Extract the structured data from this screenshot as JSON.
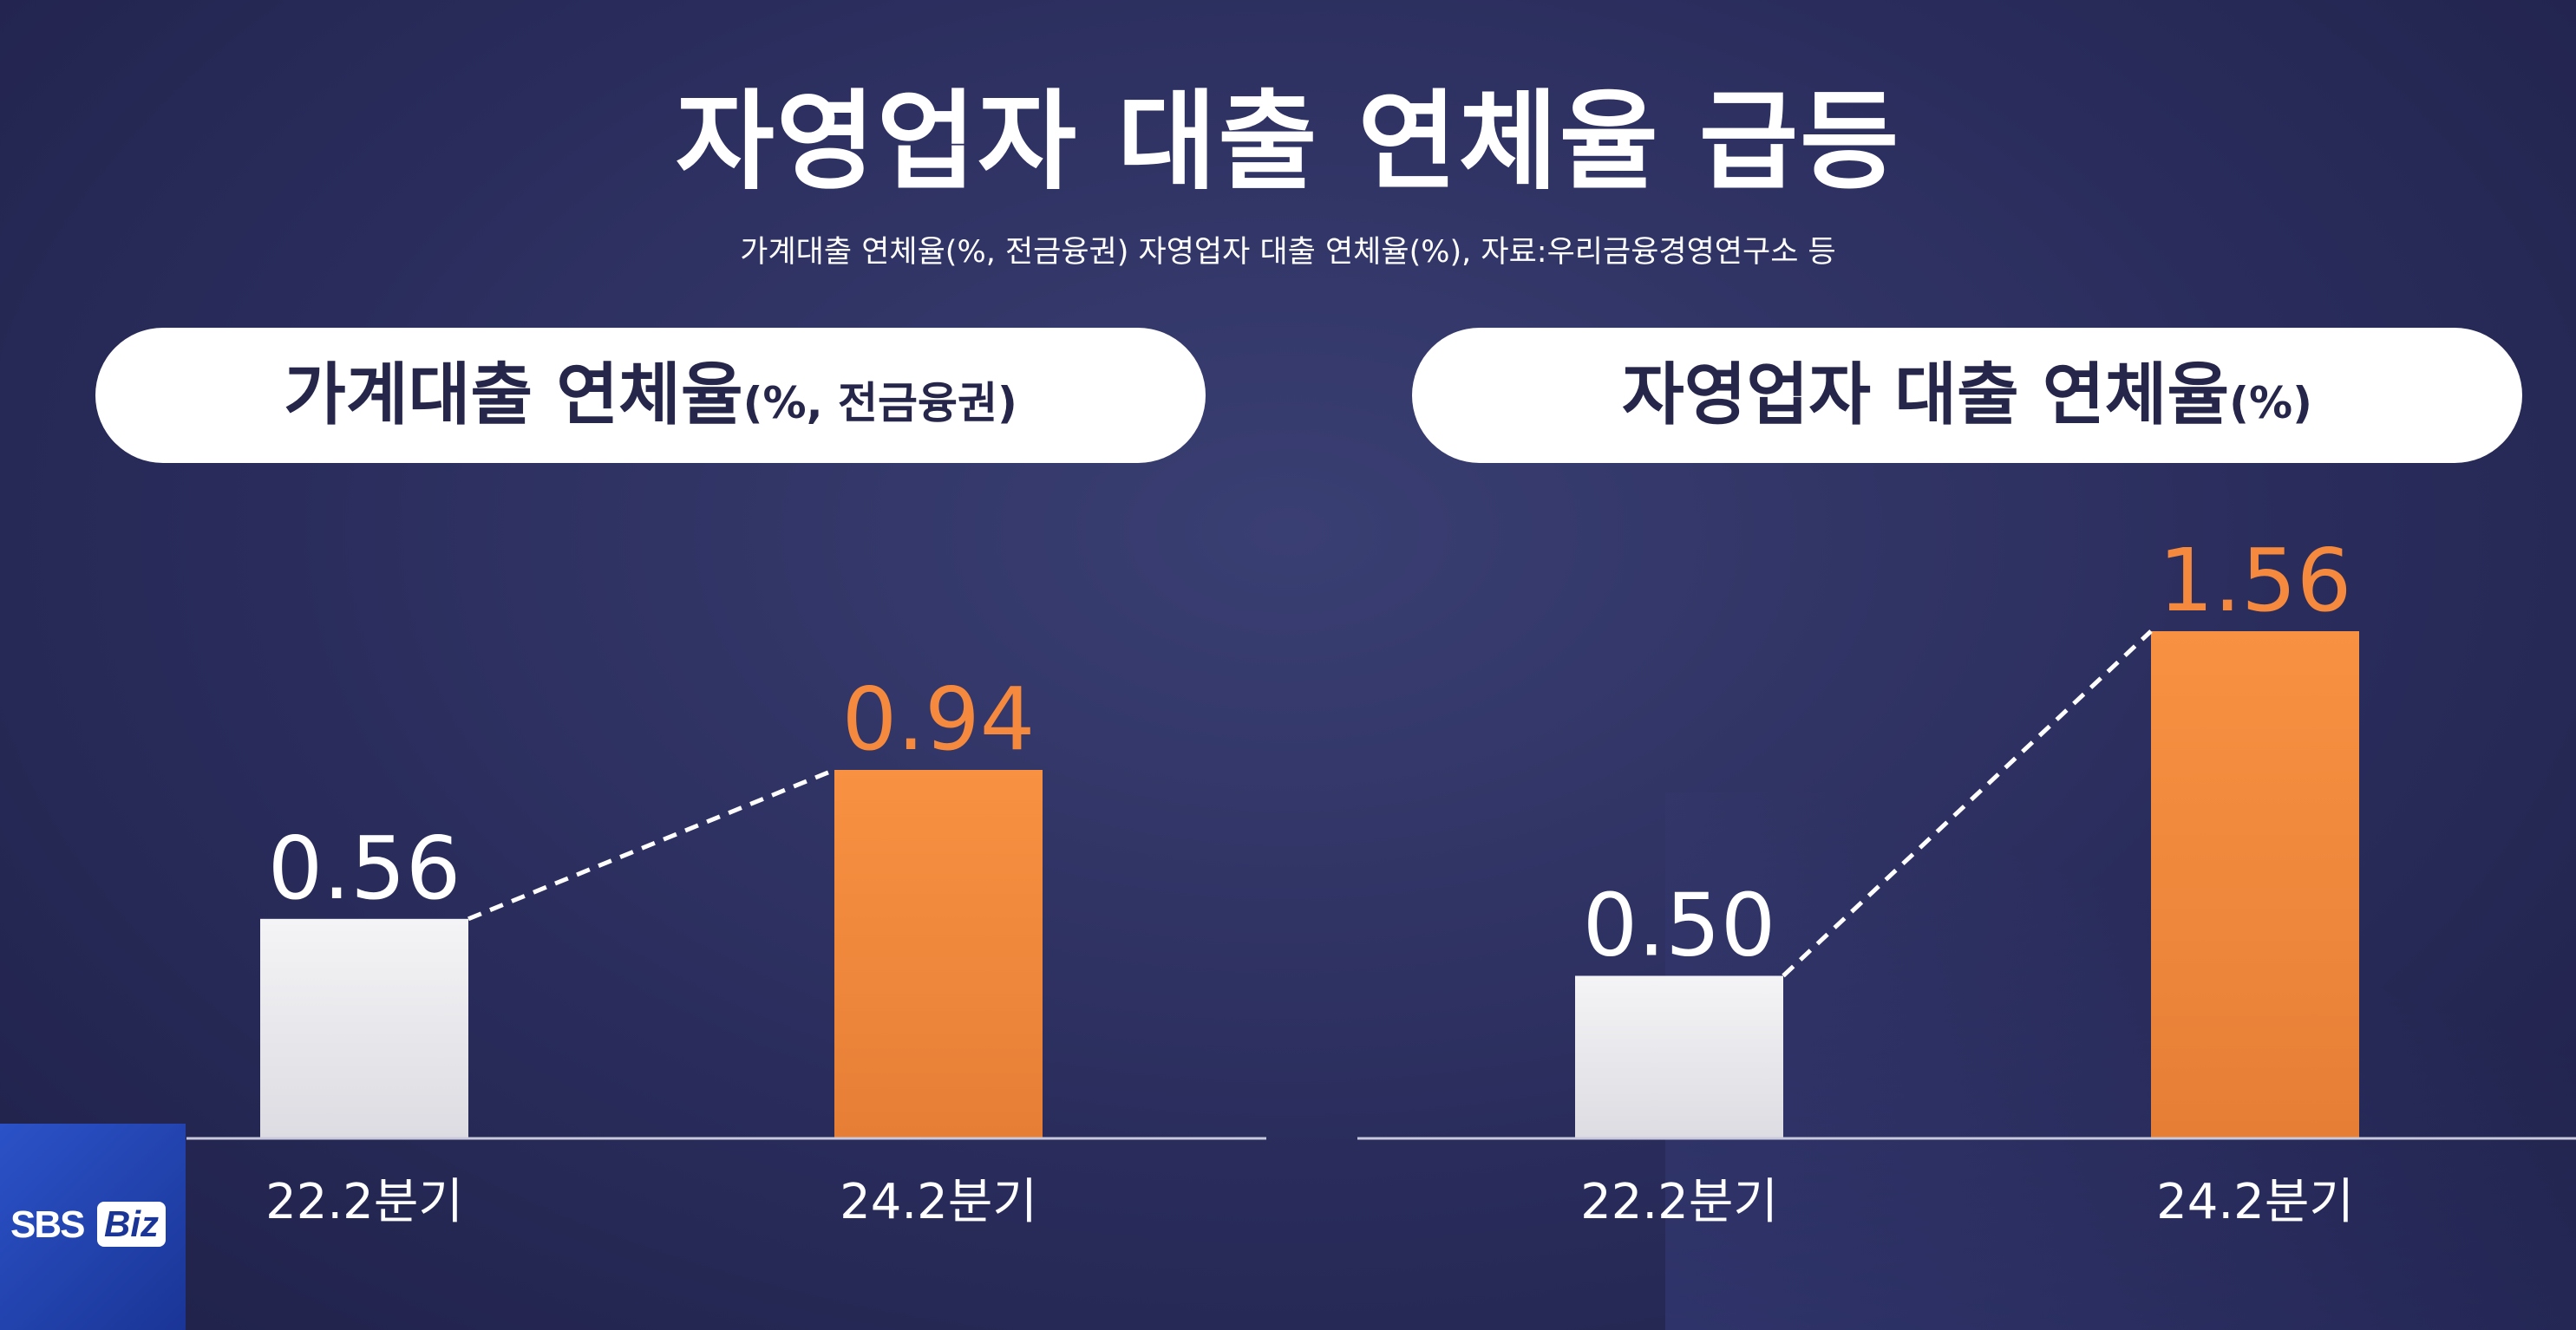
{
  "title": "자영업자 대출 연체율 급등",
  "subtitle": "가계대출 연체율(%, 전금융권) 자영업자 대출 연체율(%), 자료:우리금융경영연구소 등",
  "logo": {
    "sbs": "SBS",
    "biz": "Biz"
  },
  "colors": {
    "base_bar": "#f0f0f2",
    "highlight_bar": "#f5893d",
    "highlight_text": "#f5893d",
    "text": "#ffffff",
    "axis": "#c8c9dc"
  },
  "chart_data": [
    {
      "type": "bar",
      "title_main": "가계대출 연체율",
      "title_unit": "(%, 전금융권)",
      "categories": [
        "22.2분기",
        "24.2분기"
      ],
      "values": [
        0.56,
        0.94
      ],
      "value_labels": [
        "0.56",
        "0.94"
      ],
      "trend_line": "dashed",
      "ylim": [
        0,
        1.0
      ]
    },
    {
      "type": "bar",
      "title_main": "자영업자 대출 연체율",
      "title_unit": "(%)",
      "categories": [
        "22.2분기",
        "24.2분기"
      ],
      "values": [
        0.5,
        1.56
      ],
      "value_labels": [
        "0.50",
        "1.56"
      ],
      "trend_line": "dashed",
      "ylim": [
        0,
        1.8
      ]
    }
  ]
}
